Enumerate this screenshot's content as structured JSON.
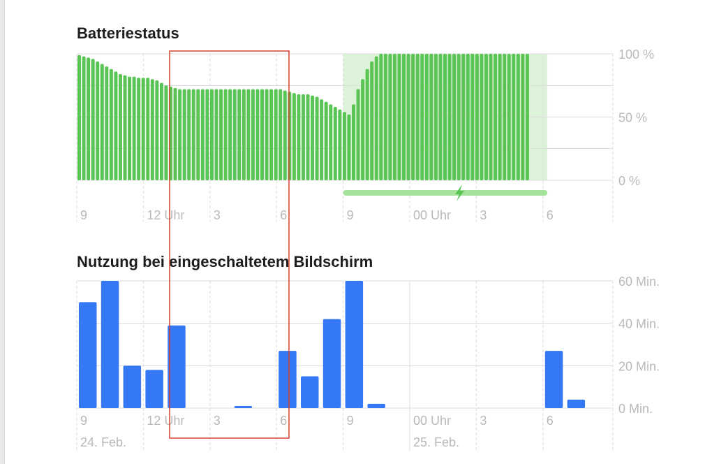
{
  "titles": {
    "battery": "Batteriestatus",
    "usage": "Nutzung bei eingeschaltetem Bildschirm"
  },
  "colors": {
    "battery_bar": "#5ac454",
    "charging_bg": "#ddf3d9",
    "charging_strip": "#a5e39d",
    "usage_bar": "#3478f6",
    "grid": "#dcdcdc",
    "highlight_box": "#d9412e"
  },
  "chart_data": [
    {
      "type": "bar",
      "title": "Batteriestatus",
      "ylim": [
        0,
        100
      ],
      "y_ticks": [
        "100 %",
        "50 %",
        "0 %"
      ],
      "x_tick_labels": [
        "9",
        "12 Uhr",
        "3",
        "6",
        "9",
        "00 Uhr",
        "3",
        "6"
      ],
      "x_tick_hours": [
        9,
        12,
        15,
        18,
        21,
        24,
        27,
        30
      ],
      "x_range_hours": [
        9,
        33.3
      ],
      "bar_interval_minutes": 15,
      "values": [
        99,
        98,
        97,
        96,
        94,
        92,
        90,
        88,
        86,
        84,
        83,
        82,
        82,
        81,
        81,
        81,
        80,
        79,
        77,
        75,
        74,
        73,
        72,
        72,
        72,
        72,
        72,
        72,
        72,
        72,
        72,
        72,
        72,
        72,
        72,
        72,
        72,
        72,
        72,
        72,
        72,
        72,
        72,
        72,
        72,
        71,
        70,
        69,
        68,
        68,
        68,
        67,
        66,
        64,
        62,
        60,
        58,
        56,
        54,
        52,
        60,
        72,
        80,
        88,
        94,
        98,
        100,
        100,
        100,
        100,
        100,
        100,
        100,
        100,
        100,
        100,
        100,
        100,
        100,
        100,
        100,
        100,
        100,
        100,
        100,
        100,
        100,
        100,
        100,
        100,
        100,
        100,
        100,
        100,
        100,
        100,
        100,
        100,
        100
      ],
      "charging_period_hours": [
        21,
        30.2
      ],
      "grid": true
    },
    {
      "type": "bar",
      "title": "Nutzung bei eingeschaltetem Bildschirm",
      "ylim": [
        0,
        60
      ],
      "y_ticks": [
        "60 Min.",
        "40 Min.",
        "20 Min.",
        "0 Min."
      ],
      "x_tick_labels": [
        "9",
        "12 Uhr",
        "3",
        "6",
        "9",
        "00 Uhr",
        "3",
        "6"
      ],
      "x_tick_hours": [
        9,
        12,
        15,
        18,
        21,
        24,
        27,
        30
      ],
      "x_range_hours": [
        9,
        33.3
      ],
      "date_labels": [
        {
          "text": "24. Feb.",
          "hour": 9
        },
        {
          "text": "25. Feb.",
          "hour": 24
        }
      ],
      "values": [
        50,
        60,
        20,
        18,
        39,
        0,
        0,
        1,
        0,
        27,
        15,
        42,
        60,
        2,
        0,
        0,
        0,
        0,
        0,
        0,
        0,
        27,
        4,
        0
      ],
      "grid": true
    }
  ]
}
